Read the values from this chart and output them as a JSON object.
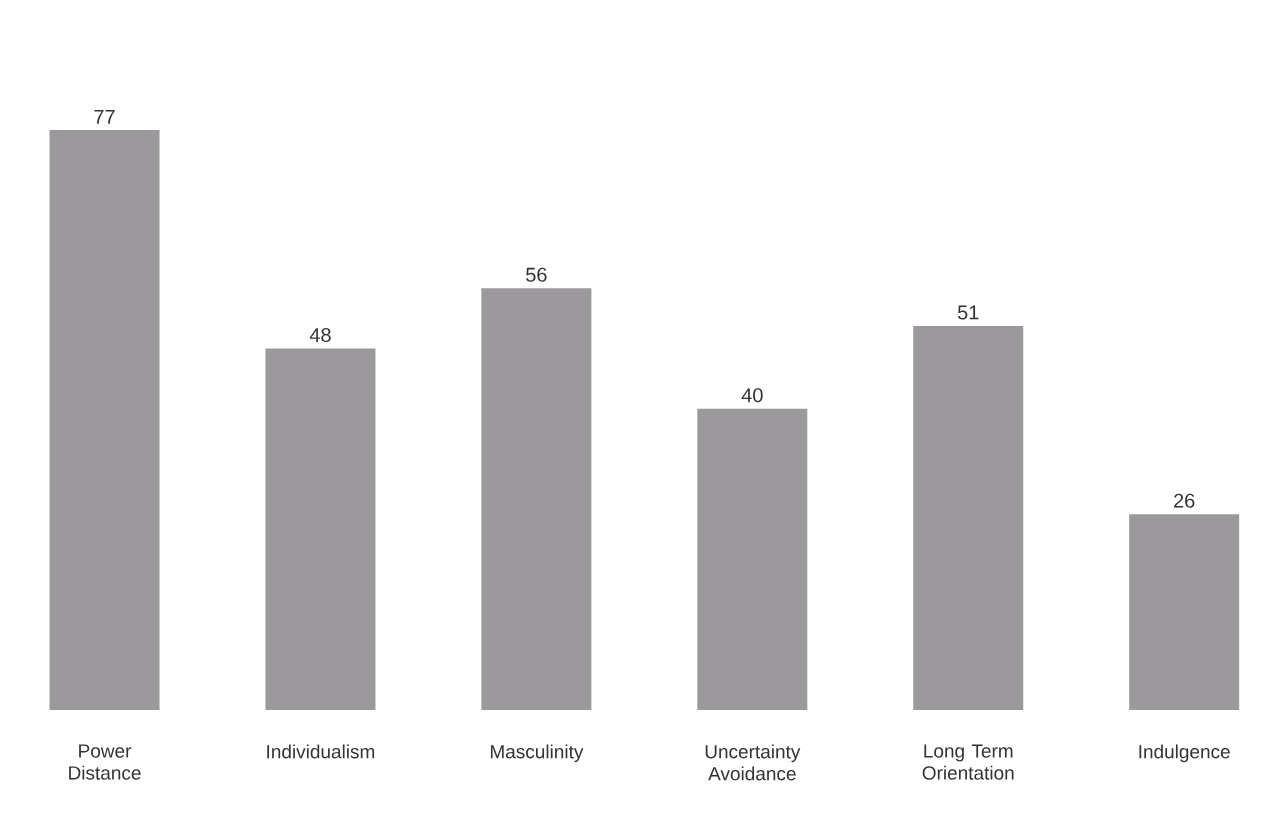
{
  "chart_data": {
    "type": "bar",
    "categories": [
      "Power Distance",
      "Individualism",
      "Masculinity",
      "Uncertainty Avoidance",
      "Long Term Orientation",
      "Indulgence"
    ],
    "values": [
      77,
      48,
      56,
      40,
      51,
      26
    ],
    "color": "#9b999b",
    "data_labels": true
  }
}
